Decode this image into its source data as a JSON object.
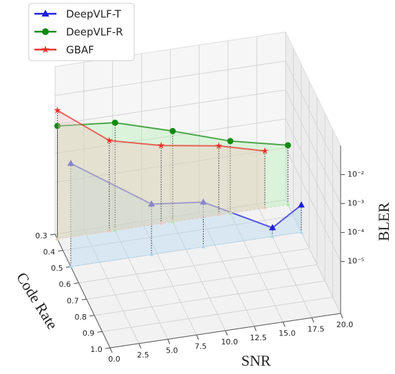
{
  "chart_data": {
    "type": "line3d",
    "xlabel": "SNR",
    "ylabel": "Code Rate",
    "zlabel": "BLER",
    "xlim": [
      0,
      20
    ],
    "ylim": [
      0.3,
      1.0
    ],
    "zlim": [
      1.6e-07,
      0.1
    ],
    "zscale": "log",
    "grid": true,
    "legend": "upper left",
    "xticks": [
      {
        "value": 0,
        "label": "0.0"
      },
      2.5,
      {
        "value": 5,
        "label": "5.0"
      },
      7.5,
      {
        "value": 10,
        "label": "10.0"
      },
      12.5,
      {
        "value": 15,
        "label": "15.0"
      },
      17.5,
      {
        "value": 20,
        "label": "20.0"
      }
    ],
    "yticks": [
      0.3,
      0.4,
      0.5,
      0.6,
      0.7,
      0.8,
      0.9,
      {
        "value": 1,
        "label": "1.0"
      }
    ],
    "zticks": [
      {
        "value": 1e-05,
        "label": "10⁻⁵"
      },
      {
        "value": 0.0001,
        "label": "10⁻⁴"
      },
      {
        "value": 0.001,
        "label": "10⁻³"
      },
      {
        "value": 0.01,
        "label": "10⁻²"
      }
    ],
    "series": [
      {
        "name": "DeepVLF-T",
        "color": "#1f1fe0",
        "fill": "#a8d4f0",
        "marker": "triangle",
        "code_rate": 0.5,
        "x": [
          0,
          7,
          11.5,
          17.5,
          20
        ],
        "values": [
          0.00059,
          8.9e-06,
          5.6e-06,
          3.2e-07,
          1.4e-06
        ]
      },
      {
        "name": "DeepVLF-R",
        "color": "#138a13",
        "fill": "#a8eea8",
        "marker": "circle",
        "code_rate": 0.33,
        "x": [
          0,
          5,
          10,
          15,
          20
        ],
        "values": [
          0.0013,
          0.00085,
          0.00022,
          5e-05,
          1.8e-05
        ]
      },
      {
        "name": "GBAF",
        "color": "#e8302a",
        "fill": "#f5c0c0",
        "marker": "star",
        "code_rate": 0.33,
        "x": [
          0,
          4.5,
          9,
          14,
          18
        ],
        "values": [
          0.0045,
          0.00022,
          8e-05,
          3.9e-05,
          1.5e-05
        ]
      }
    ]
  }
}
